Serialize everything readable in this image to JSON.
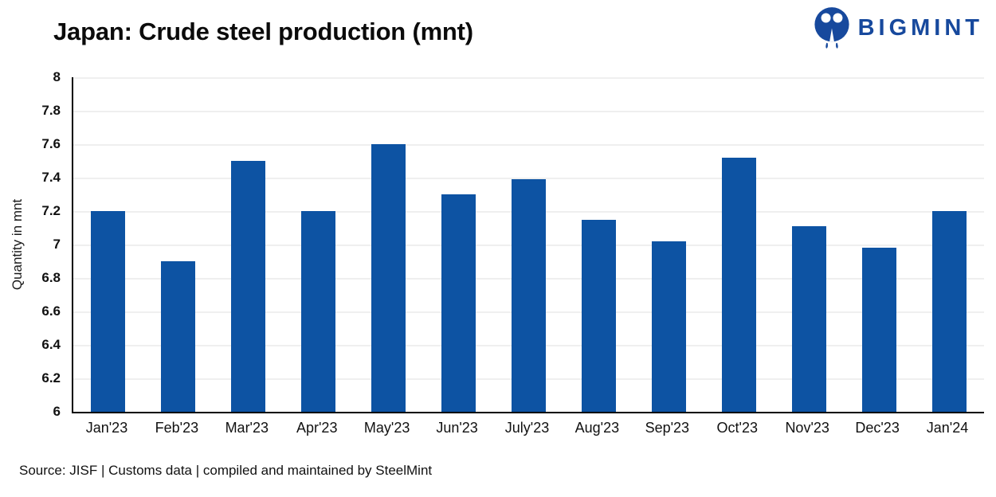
{
  "header": {
    "title": "Japan: Crude steel production (mnt)",
    "brand": {
      "name": "BIGMINT",
      "icon": "bigmint-people-icon",
      "color": "#17499d"
    }
  },
  "chart_data": {
    "type": "bar",
    "title": "Japan: Crude steel production (mnt)",
    "categories": [
      "Jan'23",
      "Feb'23",
      "Mar'23",
      "Apr'23",
      "May'23",
      "Jun'23",
      "July'23",
      "Aug'23",
      "Sep'23",
      "Oct'23",
      "Nov'23",
      "Dec'23",
      "Jan'24"
    ],
    "values": [
      7.2,
      6.9,
      7.5,
      7.2,
      7.6,
      7.3,
      7.39,
      7.15,
      7.02,
      7.52,
      7.11,
      6.98,
      7.2
    ],
    "xlabel": "",
    "ylabel": "Quantity in mnt",
    "ylim": [
      6,
      8
    ],
    "ytick_step": 0.2,
    "yticks": [
      "8",
      "7.8",
      "7.6",
      "7.4",
      "7.2",
      "7",
      "6.8",
      "6.6",
      "6.4",
      "6.2",
      "6"
    ],
    "bar_color": "#0d53a3",
    "grid": "horizontal",
    "legend": "none"
  },
  "footer": {
    "source": "Source: JISF | Customs data | compiled and maintained by SteelMint"
  }
}
